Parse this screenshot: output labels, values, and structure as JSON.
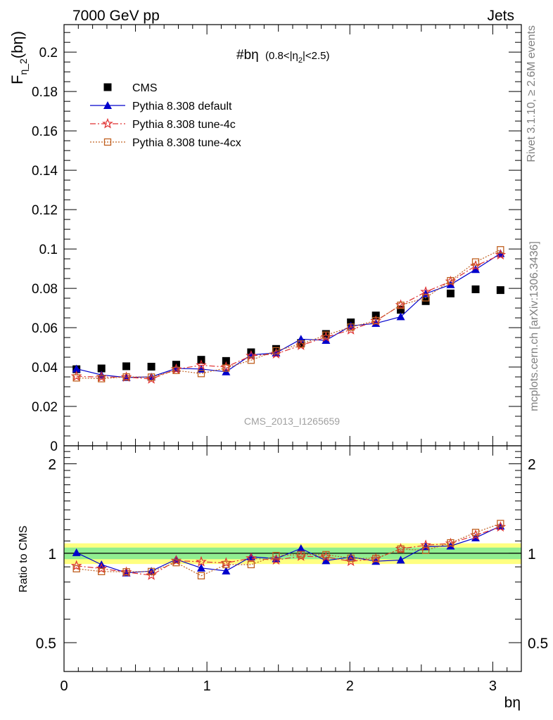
{
  "header": {
    "left": "7000 GeV pp",
    "right": "Jets"
  },
  "side_labels": {
    "rivet": "Rivet 3.1.10, ≥ 2.6M events",
    "mcplots": "mcplots.cern.ch [arXiv:1306.3436]"
  },
  "chart_data": [
    {
      "type": "scatter",
      "title": "#bη",
      "title_suffix": "(0.8<|η",
      "title_sub": "2",
      "title_end": "|<2.5)",
      "ylabel_main": "F",
      "ylabel_sub": "η_2",
      "ylabel_end": "(bη)",
      "xlabel": "bη",
      "watermark": "CMS_2013_I1265659",
      "xlim": [
        0,
        3.2
      ],
      "ylim": [
        0,
        0.214
      ],
      "x_ticks": [
        0,
        1,
        2,
        3
      ],
      "y_ticks": [
        0,
        0.02,
        0.04,
        0.06,
        0.08,
        0.1,
        0.12,
        0.14,
        0.16,
        0.18,
        0.2
      ],
      "y_tick_labels": [
        "0",
        "0.02",
        "0.04",
        "0.06",
        "0.08",
        "0.1",
        "0.12",
        "0.14",
        "0.16",
        "0.18",
        "0.2"
      ],
      "x": [
        0.087,
        0.262,
        0.436,
        0.611,
        0.785,
        0.96,
        1.134,
        1.309,
        1.484,
        1.658,
        1.833,
        2.007,
        2.182,
        2.356,
        2.531,
        2.705,
        2.88,
        3.054
      ],
      "series": [
        {
          "name": "CMS",
          "color": "#000000",
          "marker": "square",
          "values": [
            0.0389,
            0.0393,
            0.0404,
            0.0402,
            0.0412,
            0.0437,
            0.0431,
            0.0475,
            0.0492,
            0.0522,
            0.0568,
            0.0627,
            0.0662,
            0.0691,
            0.0735,
            0.0774,
            0.0795,
            0.0791
          ]
        },
        {
          "name": "Pythia 8.308 default",
          "color": "#0000cc",
          "marker": "triangle",
          "line": "solid",
          "values": [
            0.0391,
            0.036,
            0.0347,
            0.035,
            0.0393,
            0.039,
            0.0376,
            0.0462,
            0.0472,
            0.0542,
            0.0536,
            0.0609,
            0.0622,
            0.0656,
            0.0773,
            0.0819,
            0.0896,
            0.0977
          ]
        },
        {
          "name": "Pythia 8.308 tune-4c",
          "color": "#e03030",
          "marker": "star",
          "line": "dashdot",
          "values": [
            0.0353,
            0.0349,
            0.0349,
            0.0339,
            0.0389,
            0.0409,
            0.04,
            0.0457,
            0.0467,
            0.051,
            0.0552,
            0.0589,
            0.0634,
            0.0715,
            0.0782,
            0.0835,
            0.0914,
            0.097
          ]
        },
        {
          "name": "Pythia 8.308 tune-4cx",
          "color": "#c06020",
          "marker": "opensquare",
          "line": "dotted",
          "values": [
            0.0345,
            0.0341,
            0.035,
            0.0349,
            0.0383,
            0.0367,
            0.0395,
            0.0435,
            0.0483,
            0.0517,
            0.0562,
            0.0603,
            0.0636,
            0.0714,
            0.0752,
            0.0839,
            0.0934,
            0.0996
          ]
        }
      ]
    },
    {
      "type": "scatter",
      "ylabel": "Ratio to CMS",
      "xlabel": "bη",
      "xlim": [
        0,
        3.2
      ],
      "ylim": [
        0.4,
        2.3
      ],
      "y_scale": "log",
      "x_ticks": [
        0,
        1,
        2,
        3
      ],
      "x_tick_labels": [
        "0",
        "1",
        "2",
        "3"
      ],
      "y_ticks": [
        0.5,
        1,
        2
      ],
      "y_tick_labels": [
        "0.5",
        "1",
        "2"
      ],
      "bands": {
        "inner": 0.045,
        "outer": 0.08,
        "inner_color": "#90ee90",
        "outer_color": "#ffff80"
      },
      "series": [
        {
          "name": "Pythia 8.308 default",
          "values": [
            1.005,
            0.916,
            0.859,
            0.871,
            0.954,
            0.892,
            0.872,
            0.973,
            0.959,
            1.038,
            0.944,
            0.971,
            0.94,
            0.949,
            1.052,
            1.058,
            1.127,
            1.235
          ]
        },
        {
          "name": "Pythia 8.308 tune-4c",
          "values": [
            0.907,
            0.888,
            0.864,
            0.843,
            0.944,
            0.936,
            0.928,
            0.962,
            0.949,
            0.977,
            0.972,
            0.939,
            0.958,
            1.035,
            1.064,
            1.079,
            1.15,
            1.226
          ]
        },
        {
          "name": "Pythia 8.308 tune-4cx",
          "values": [
            0.887,
            0.868,
            0.866,
            0.868,
            0.93,
            0.84,
            0.916,
            0.916,
            0.982,
            0.99,
            0.989,
            0.962,
            0.961,
            1.033,
            1.023,
            1.084,
            1.175,
            1.259
          ]
        }
      ]
    }
  ]
}
